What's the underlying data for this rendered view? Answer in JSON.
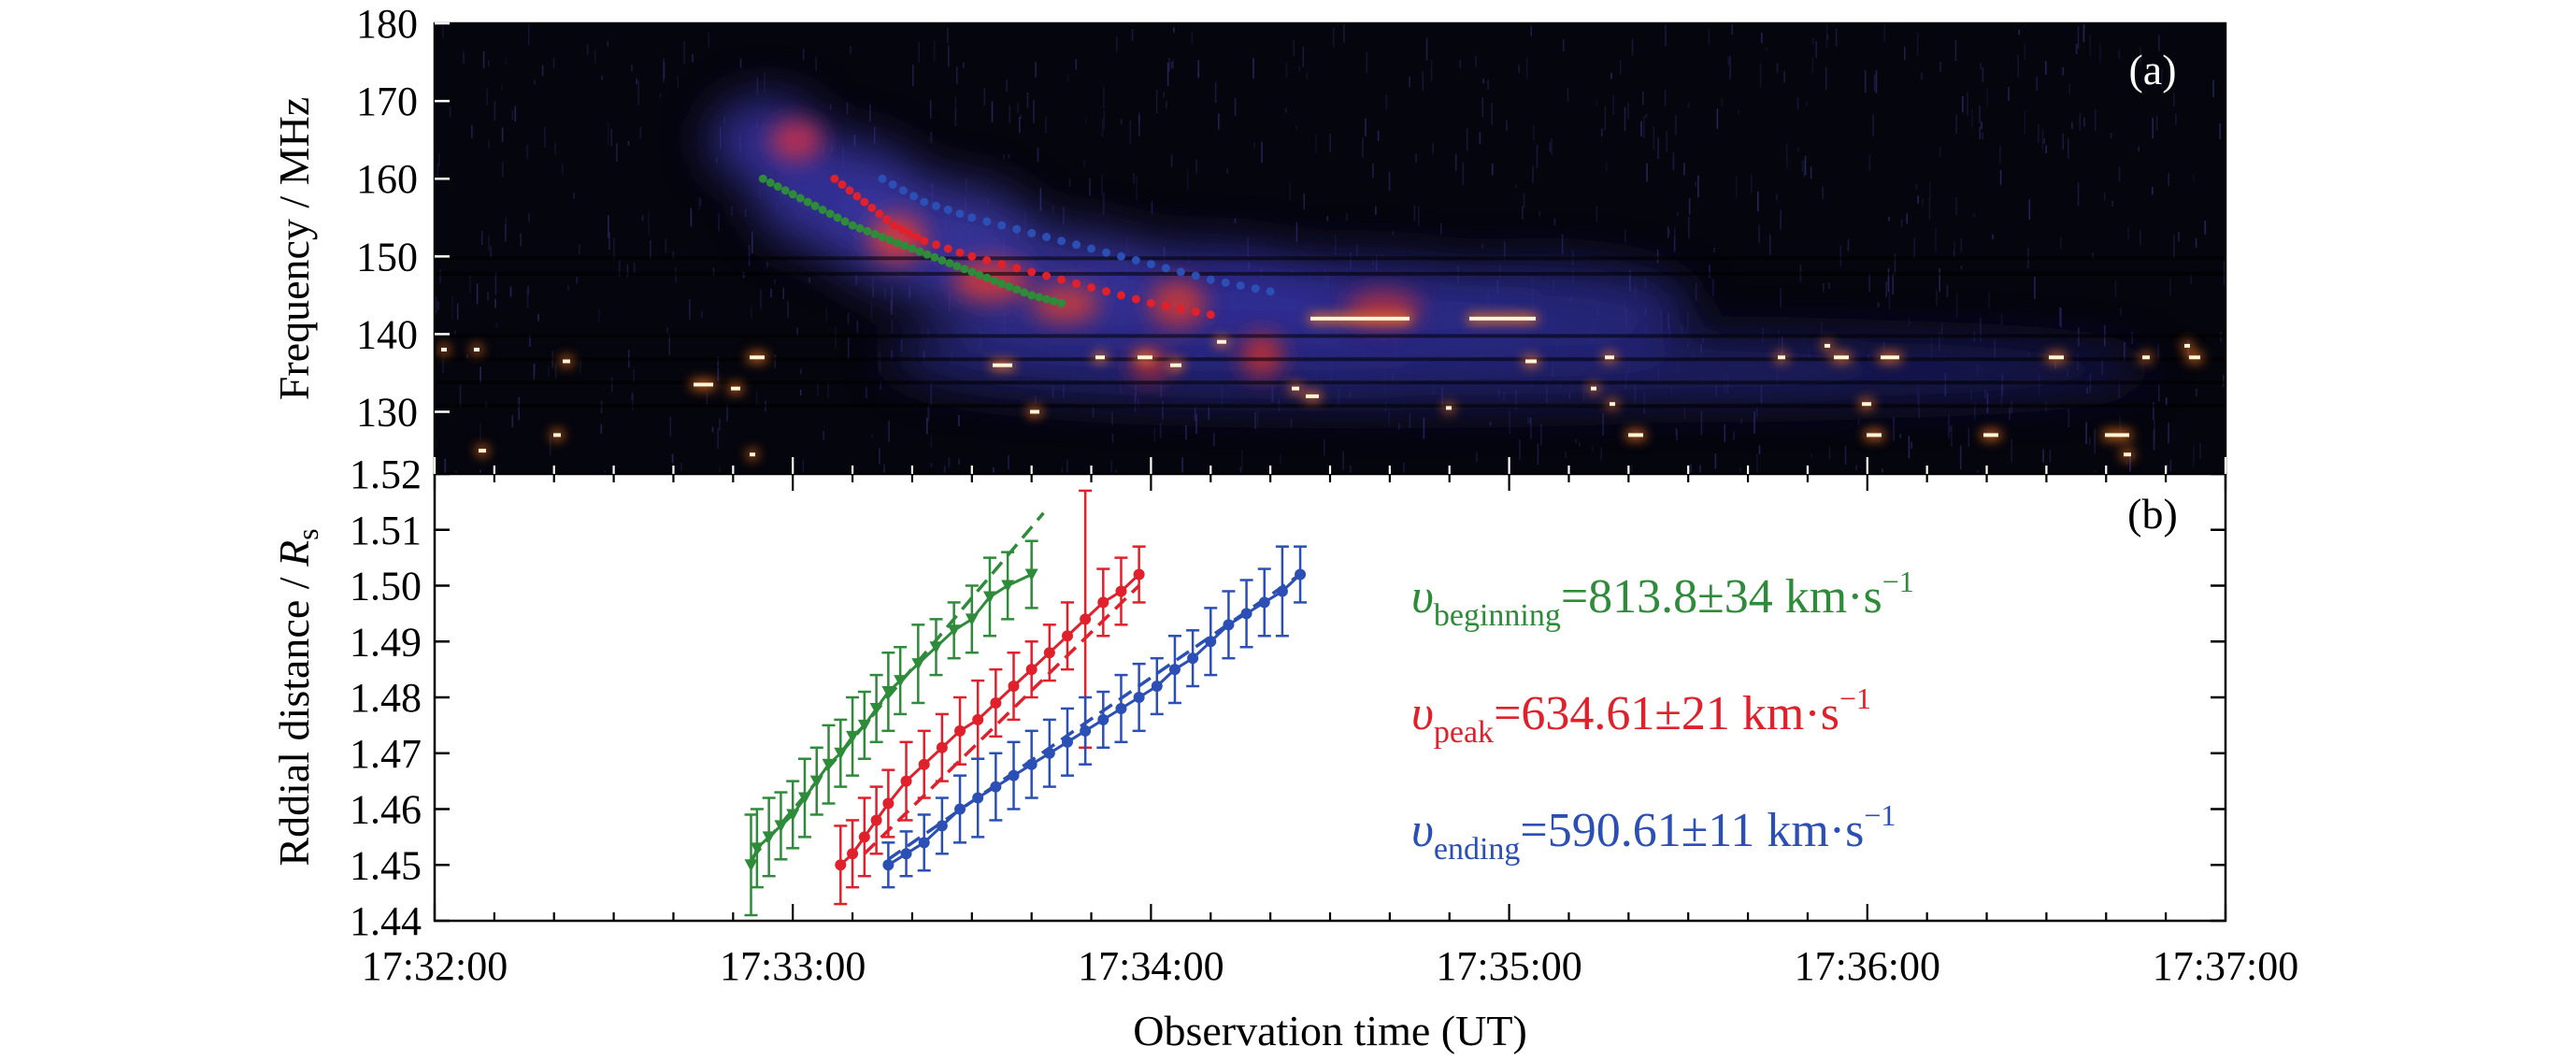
{
  "chart_data": [
    {
      "panel": "a",
      "panel_label": "(a)",
      "type": "heatmap",
      "ylabel": "Frequency / MHz",
      "ylim": [
        122,
        180
      ],
      "xlim": [
        "17:32:00",
        "17:37:00"
      ],
      "yticks": [
        130,
        140,
        150,
        160,
        170,
        180
      ],
      "overlay_tracks": [
        {
          "color": "#2e8b3a",
          "points": [
            [
              "17:32:55",
              160
            ],
            [
              "17:33:00",
              158
            ],
            [
              "17:33:05",
              156
            ],
            [
              "17:33:10",
              154
            ],
            [
              "17:33:15",
              152.5
            ],
            [
              "17:33:20",
              151
            ],
            [
              "17:33:25",
              149.5
            ],
            [
              "17:33:30",
              148
            ],
            [
              "17:33:35",
              146.5
            ],
            [
              "17:33:40",
              145
            ],
            [
              "17:33:45",
              144
            ]
          ]
        },
        {
          "color": "#e0202a",
          "points": [
            [
              "17:33:07",
              160
            ],
            [
              "17:33:12",
              157
            ],
            [
              "17:33:17",
              154
            ],
            [
              "17:33:22",
              152
            ],
            [
              "17:33:30",
              150
            ],
            [
              "17:33:40",
              148
            ],
            [
              "17:33:50",
              146
            ],
            [
              "17:34:00",
              144
            ],
            [
              "17:34:10",
              142.5
            ]
          ]
        },
        {
          "color": "#2b4fb4",
          "points": [
            [
              "17:33:15",
              160
            ],
            [
              "17:33:22",
              157
            ],
            [
              "17:33:30",
              155
            ],
            [
              "17:33:40",
              153
            ],
            [
              "17:33:50",
              151
            ],
            [
              "17:34:00",
              149
            ],
            [
              "17:34:10",
              147
            ],
            [
              "17:34:20",
              145.5
            ]
          ]
        }
      ]
    },
    {
      "panel": "b",
      "panel_label": "(b)",
      "type": "scatter",
      "ylabel_main": "Rddial distance / ",
      "ylabel_sym": "R",
      "ylabel_sub": "s",
      "xlabel": "Observation time (UT)",
      "xlim": [
        "17:32:00",
        "17:37:00"
      ],
      "xticks": [
        "17:32:00",
        "17:33:00",
        "17:34:00",
        "17:35:00",
        "17:36:00",
        "17:37:00"
      ],
      "ylim": [
        1.44,
        1.52
      ],
      "yticks": [
        "1.44",
        "1.45",
        "1.46",
        "1.47",
        "1.48",
        "1.49",
        "1.50",
        "1.51",
        "1.52"
      ],
      "series": [
        {
          "label_sym": "υ",
          "label_sub": "beginning",
          "label_value": "=813.8±34 km·s",
          "label_exp": "−1",
          "color": "#2e8b3a",
          "marker": "triangle",
          "points": [
            [
              "17:32:53",
              1.45,
              0.009
            ],
            [
              "17:32:54",
              1.453,
              0.007
            ],
            [
              "17:32:56",
              1.455,
              0.007
            ],
            [
              "17:32:58",
              1.457,
              0.006
            ],
            [
              "17:33:00",
              1.459,
              0.006
            ],
            [
              "17:33:02",
              1.462,
              0.007
            ],
            [
              "17:33:04",
              1.465,
              0.006
            ],
            [
              "17:33:06",
              1.468,
              0.007
            ],
            [
              "17:33:08",
              1.47,
              0.006
            ],
            [
              "17:33:10",
              1.473,
              0.007
            ],
            [
              "17:33:12",
              1.475,
              0.006
            ],
            [
              "17:33:14",
              1.478,
              0.006
            ],
            [
              "17:33:16",
              1.481,
              0.007
            ],
            [
              "17:33:18",
              1.483,
              0.006
            ],
            [
              "17:33:21",
              1.486,
              0.007
            ],
            [
              "17:33:24",
              1.489,
              0.005
            ],
            [
              "17:33:27",
              1.492,
              0.005
            ],
            [
              "17:33:30",
              1.494,
              0.006
            ],
            [
              "17:33:33",
              1.498,
              0.007
            ],
            [
              "17:33:36",
              1.5,
              0.006
            ],
            [
              "17:33:40",
              1.502,
              0.006
            ]
          ]
        },
        {
          "label_sym": "υ",
          "label_sub": "peak",
          "label_value": "=634.61±21 km·s",
          "label_exp": "−1",
          "color": "#e0202a",
          "marker": "circle",
          "points": [
            [
              "17:33:08",
              1.45,
              0.007
            ],
            [
              "17:33:10",
              1.452,
              0.006
            ],
            [
              "17:33:12",
              1.455,
              0.007
            ],
            [
              "17:33:14",
              1.458,
              0.006
            ],
            [
              "17:33:16",
              1.461,
              0.006
            ],
            [
              "17:33:19",
              1.465,
              0.007
            ],
            [
              "17:33:22",
              1.468,
              0.006
            ],
            [
              "17:33:25",
              1.471,
              0.006
            ],
            [
              "17:33:28",
              1.474,
              0.006
            ],
            [
              "17:33:31",
              1.476,
              0.007
            ],
            [
              "17:33:34",
              1.479,
              0.006
            ],
            [
              "17:33:37",
              1.482,
              0.006
            ],
            [
              "17:33:40",
              1.485,
              0.005
            ],
            [
              "17:33:43",
              1.488,
              0.005
            ],
            [
              "17:33:46",
              1.491,
              0.006
            ],
            [
              "17:33:49",
              1.494,
              0.023
            ],
            [
              "17:33:52",
              1.497,
              0.006
            ],
            [
              "17:33:55",
              1.499,
              0.006
            ],
            [
              "17:33:58",
              1.502,
              0.005
            ]
          ]
        },
        {
          "label_sym": "υ",
          "label_sub": "ending",
          "label_value": "=590.61±11 km·s",
          "label_exp": "−1",
          "color": "#2b4fb4",
          "marker": "circle",
          "points": [
            [
              "17:33:16",
              1.45,
              0.004
            ],
            [
              "17:33:19",
              1.452,
              0.004
            ],
            [
              "17:33:22",
              1.454,
              0.005
            ],
            [
              "17:33:25",
              1.457,
              0.005
            ],
            [
              "17:33:28",
              1.46,
              0.006
            ],
            [
              "17:33:31",
              1.462,
              0.007
            ],
            [
              "17:33:34",
              1.464,
              0.006
            ],
            [
              "17:33:37",
              1.466,
              0.006
            ],
            [
              "17:33:40",
              1.468,
              0.006
            ],
            [
              "17:33:43",
              1.47,
              0.006
            ],
            [
              "17:33:46",
              1.472,
              0.006
            ],
            [
              "17:33:49",
              1.474,
              0.006
            ],
            [
              "17:33:52",
              1.476,
              0.005
            ],
            [
              "17:33:55",
              1.478,
              0.006
            ],
            [
              "17:33:58",
              1.48,
              0.006
            ],
            [
              "17:34:01",
              1.482,
              0.005
            ],
            [
              "17:34:04",
              1.485,
              0.006
            ],
            [
              "17:34:07",
              1.487,
              0.005
            ],
            [
              "17:34:10",
              1.49,
              0.006
            ],
            [
              "17:34:13",
              1.493,
              0.006
            ],
            [
              "17:34:16",
              1.495,
              0.006
            ],
            [
              "17:34:19",
              1.497,
              0.006
            ],
            [
              "17:34:22",
              1.499,
              0.008
            ],
            [
              "17:34:25",
              1.502,
              0.005
            ]
          ]
        }
      ],
      "fit_lines": [
        {
          "color": "#2e8b3a",
          "from": [
            "17:32:53",
            1.451
          ],
          "to": [
            "17:33:42",
            1.513
          ]
        },
        {
          "color": "#e0202a",
          "from": [
            "17:33:12",
            1.452
          ],
          "to": [
            "17:33:58",
            1.5
          ]
        },
        {
          "color": "#2b4fb4",
          "from": [
            "17:33:16",
            1.451
          ],
          "to": [
            "17:34:25",
            1.502
          ]
        }
      ]
    }
  ]
}
